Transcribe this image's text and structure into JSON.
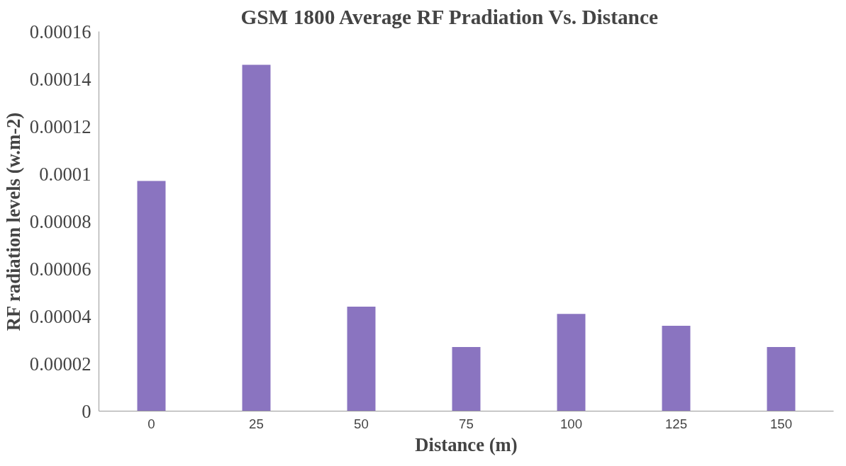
{
  "chart_data": {
    "type": "bar",
    "title": "GSM 1800 Average RF Pradiation Vs. Distance",
    "xlabel": "Distance (m)",
    "ylabel": "RF radiation levels (w.m-2)",
    "categories": [
      "0",
      "25",
      "50",
      "75",
      "100",
      "125",
      "150"
    ],
    "values": [
      9.7e-05,
      0.000146,
      4.4e-05,
      2.7e-05,
      4.1e-05,
      3.6e-05,
      2.7e-05
    ],
    "color": "#8a74c0",
    "ylim": [
      0,
      0.00016
    ],
    "yticks": [
      {
        "value": 0,
        "label": "0"
      },
      {
        "value": 2e-05,
        "label": "0.00002"
      },
      {
        "value": 4e-05,
        "label": "0.00004"
      },
      {
        "value": 6e-05,
        "label": "0.00006"
      },
      {
        "value": 8e-05,
        "label": "0.00008"
      },
      {
        "value": 0.0001,
        "label": "0.0001"
      },
      {
        "value": 0.00012,
        "label": "0.00012"
      },
      {
        "value": 0.00014,
        "label": "0.00014"
      },
      {
        "value": 0.00016,
        "label": "0.00016"
      }
    ],
    "grid": false
  }
}
